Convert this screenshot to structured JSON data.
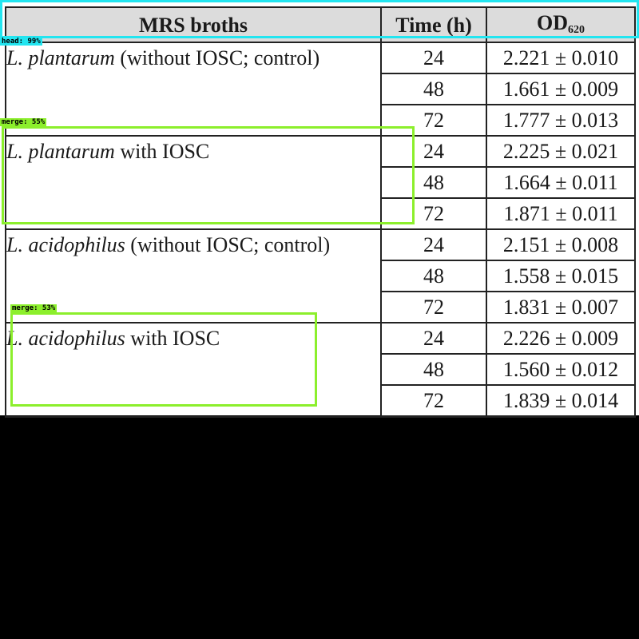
{
  "table": {
    "headers": {
      "broth": "MRS broths",
      "time": "Time (h)",
      "od_main": "OD",
      "od_sub": "620"
    },
    "groups": [
      {
        "species": "L. plantarum",
        "condition": " (without IOSC; control)",
        "rows": [
          {
            "time": "24",
            "od": "2.221 ± 0.010"
          },
          {
            "time": "48",
            "od": "1.661 ± 0.009"
          },
          {
            "time": "72",
            "od": "1.777 ± 0.013"
          }
        ]
      },
      {
        "species": "L. plantarum",
        "condition": " with IOSC",
        "rows": [
          {
            "time": "24",
            "od": "2.225 ± 0.021"
          },
          {
            "time": "48",
            "od": "1.664 ± 0.011"
          },
          {
            "time": "72",
            "od": "1.871 ± 0.011"
          }
        ]
      },
      {
        "species": "L. acidophilus",
        "condition": " (without IOSC; control)",
        "rows": [
          {
            "time": "24",
            "od": "2.151 ± 0.008"
          },
          {
            "time": "48",
            "od": "1.558 ± 0.015"
          },
          {
            "time": "72",
            "od": "1.831 ± 0.007"
          }
        ]
      },
      {
        "species": "L. acidophilus",
        "condition": " with IOSC",
        "rows": [
          {
            "time": "24",
            "od": "2.226 ± 0.009"
          },
          {
            "time": "48",
            "od": "1.560 ± 0.012"
          },
          {
            "time": "72",
            "od": "1.839 ± 0.014"
          }
        ]
      }
    ]
  },
  "overlays": {
    "head_label": "head: 99%",
    "merge1_label": "merge: 55%",
    "merge2_label": "merge: 53%",
    "head_color": "#22e5f0",
    "merge_color": "#8cef2c"
  }
}
